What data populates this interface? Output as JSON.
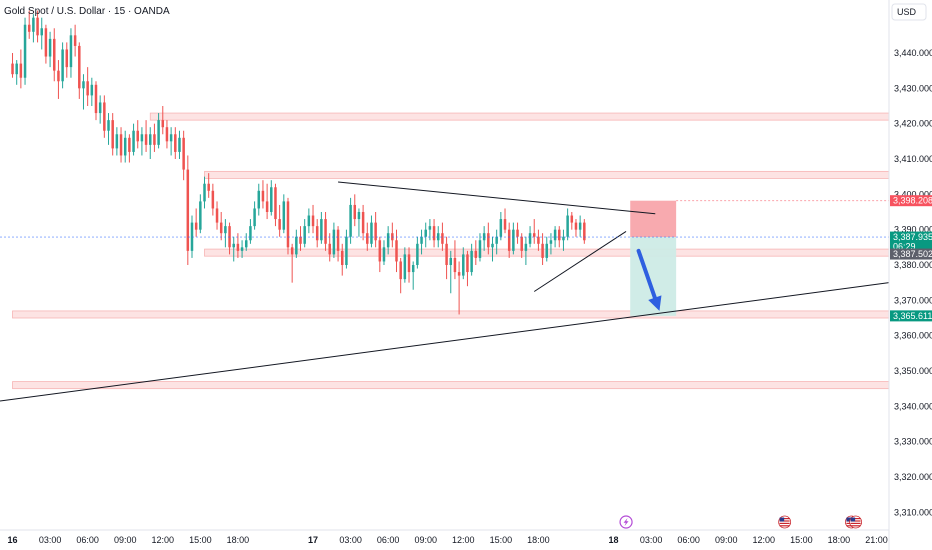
{
  "header": {
    "title": "Gold Spot / U.S. Dollar · 15 · OANDA"
  },
  "axis": {
    "currency_label": "USD"
  },
  "colors": {
    "up": "#26a69a",
    "down": "#ef5350",
    "zone_fill": "#fde3e3",
    "zone_stroke": "#f7b4b4",
    "stop_box": "#f7a1a6",
    "target_box": "#cdebe6",
    "arrow": "#2f5fe0",
    "trendline": "#131722",
    "current_price_tag": "#089981",
    "stop_tag": "#f7525f",
    "target_tag": "#089981",
    "gray_tag": "#5d606b"
  },
  "chart_data": {
    "type": "candlestick",
    "title": "Gold Spot / U.S. Dollar · 15 · OANDA",
    "y_axis": {
      "ticks": [
        "3,440.000",
        "3,430.000",
        "3,420.000",
        "3,410.000",
        "3,400.000",
        "3,390.000",
        "3,380.000",
        "3,370.000",
        "3,360.000",
        "3,350.000",
        "3,340.000",
        "3,330.000",
        "3,320.000",
        "3,310.000"
      ],
      "tick_values": [
        3440,
        3430,
        3420,
        3410,
        3400,
        3390,
        3380,
        3370,
        3360,
        3350,
        3340,
        3330,
        3320,
        3310
      ],
      "range": [
        3305,
        3455
      ]
    },
    "x_axis": {
      "ticks": [
        "16",
        "03:00",
        "06:00",
        "09:00",
        "12:00",
        "15:00",
        "18:00",
        "17",
        "03:00",
        "06:00",
        "09:00",
        "12:00",
        "15:00",
        "18:00",
        "18",
        "03:00",
        "06:00",
        "09:00",
        "12:00",
        "15:00",
        "18:00",
        "21:00"
      ],
      "tick_positions": [
        0,
        9,
        18,
        27,
        36,
        45,
        54,
        72,
        81,
        90,
        99,
        108,
        117,
        126,
        144,
        153,
        162,
        171,
        180,
        189,
        198,
        207
      ],
      "last_candle_index": 149,
      "range_bars": [
        -3,
        210
      ]
    },
    "price_tags": [
      {
        "label": "3,398.208",
        "value": 3398.2,
        "kind": "stop"
      },
      {
        "label": "3,387.935",
        "sublabel": "06:29",
        "value": 3387.9,
        "kind": "current"
      },
      {
        "label": "3,387.502",
        "value": 3383.1,
        "kind": "gray"
      },
      {
        "label": "3,365.611",
        "value": 3365.6,
        "kind": "target"
      }
    ],
    "zones": [
      {
        "from_bar": 33,
        "low": 3421.0,
        "high": 3423.0
      },
      {
        "from_bar": 46,
        "low": 3404.5,
        "high": 3406.5
      },
      {
        "from_bar": 46,
        "low": 3382.5,
        "high": 3384.5
      },
      {
        "from_bar": 0,
        "low": 3365.0,
        "high": 3367.0
      },
      {
        "from_bar": 0,
        "low": 3345.0,
        "high": 3347.0
      }
    ],
    "trendlines": [
      {
        "x1": -3,
        "y1": 3341.5,
        "x2": 210,
        "y2": 3375.0
      },
      {
        "x1": 78,
        "y1": 3403.5,
        "x2": 154,
        "y2": 3394.5
      },
      {
        "x1": 125,
        "y1": 3372.5,
        "x2": 147,
        "y2": 3389.5
      }
    ],
    "position": {
      "from_bar": 148,
      "to_bar": 159,
      "stop_top": 3398.2,
      "entry": 3387.9,
      "target": 3365.6,
      "arrow": {
        "x1": 150,
        "y1": 3384.0,
        "x2": 155,
        "y2": 3367.0
      }
    },
    "events": [
      {
        "bar": 147,
        "kind": "lightning"
      },
      {
        "bar": 185,
        "kind": "us-flag"
      },
      {
        "bar": 201,
        "kind": "us-flag"
      },
      {
        "bar": 202,
        "kind": "us-flag"
      }
    ],
    "candles": [
      [
        3437,
        3440,
        3433,
        3434
      ],
      [
        3434,
        3438,
        3431,
        3437
      ],
      [
        3437,
        3441,
        3430,
        3433
      ],
      [
        3433,
        3450,
        3431,
        3448
      ],
      [
        3448,
        3452,
        3444,
        3446
      ],
      [
        3446,
        3451,
        3443,
        3450
      ],
      [
        3450,
        3452,
        3443,
        3445
      ],
      [
        3445,
        3450,
        3441,
        3447
      ],
      [
        3447,
        3448,
        3437,
        3439
      ],
      [
        3439,
        3446,
        3436,
        3444
      ],
      [
        3444,
        3447,
        3432,
        3435
      ],
      [
        3435,
        3438,
        3427,
        3432
      ],
      [
        3432,
        3443,
        3430,
        3441
      ],
      [
        3441,
        3443,
        3433,
        3436
      ],
      [
        3436,
        3447,
        3433,
        3445
      ],
      [
        3445,
        3448,
        3439,
        3442
      ],
      [
        3442,
        3443,
        3427,
        3430
      ],
      [
        3430,
        3434,
        3424,
        3432
      ],
      [
        3432,
        3436,
        3425,
        3428
      ],
      [
        3428,
        3433,
        3425,
        3431
      ],
      [
        3431,
        3432,
        3421,
        3423
      ],
      [
        3423,
        3428,
        3420,
        3426
      ],
      [
        3426,
        3428,
        3416,
        3418
      ],
      [
        3418,
        3423,
        3414,
        3421
      ],
      [
        3421,
        3423,
        3411,
        3413
      ],
      [
        3413,
        3419,
        3411,
        3417
      ],
      [
        3417,
        3419,
        3409,
        3411
      ],
      [
        3411,
        3418,
        3409,
        3416
      ],
      [
        3416,
        3417,
        3409,
        3412
      ],
      [
        3412,
        3420,
        3411,
        3418
      ],
      [
        3418,
        3421,
        3413,
        3415
      ],
      [
        3415,
        3419,
        3411,
        3417
      ],
      [
        3417,
        3421,
        3412,
        3414
      ],
      [
        3414,
        3419,
        3410,
        3417
      ],
      [
        3417,
        3420,
        3412,
        3414
      ],
      [
        3414,
        3423,
        3413,
        3421
      ],
      [
        3421,
        3425,
        3417,
        3419
      ],
      [
        3419,
        3421,
        3413,
        3415
      ],
      [
        3415,
        3419,
        3411,
        3417
      ],
      [
        3417,
        3419,
        3410,
        3412
      ],
      [
        3412,
        3418,
        3410,
        3416
      ],
      [
        3416,
        3418,
        3404,
        3407
      ],
      [
        3407,
        3411,
        3380,
        3384
      ],
      [
        3384,
        3394,
        3382,
        3392
      ],
      [
        3392,
        3396,
        3388,
        3390
      ],
      [
        3390,
        3400,
        3389,
        3398
      ],
      [
        3398,
        3405,
        3396,
        3403
      ],
      [
        3403,
        3406,
        3399,
        3401
      ],
      [
        3401,
        3403,
        3394,
        3396
      ],
      [
        3396,
        3398,
        3390,
        3392
      ],
      [
        3392,
        3395,
        3387,
        3389
      ],
      [
        3389,
        3393,
        3385,
        3391
      ],
      [
        3391,
        3392,
        3383,
        3385
      ],
      [
        3385,
        3388,
        3381,
        3386
      ],
      [
        3386,
        3389,
        3382,
        3384
      ],
      [
        3384,
        3387,
        3382,
        3385
      ],
      [
        3385,
        3389,
        3384,
        3387
      ],
      [
        3387,
        3393,
        3386,
        3391
      ],
      [
        3391,
        3398,
        3390,
        3396
      ],
      [
        3396,
        3403,
        3394,
        3401
      ],
      [
        3401,
        3404,
        3396,
        3398
      ],
      [
        3398,
        3403,
        3393,
        3395
      ],
      [
        3395,
        3404,
        3394,
        3402
      ],
      [
        3402,
        3403,
        3391,
        3393
      ],
      [
        3393,
        3397,
        3388,
        3390
      ],
      [
        3390,
        3400,
        3389,
        3398
      ],
      [
        3398,
        3399,
        3383,
        3385
      ],
      [
        3385,
        3386,
        3375,
        3383
      ],
      [
        3383,
        3390,
        3382,
        3388
      ],
      [
        3388,
        3391,
        3384,
        3386
      ],
      [
        3386,
        3393,
        3385,
        3391
      ],
      [
        3391,
        3396,
        3389,
        3394
      ],
      [
        3394,
        3397,
        3389,
        3391
      ],
      [
        3391,
        3393,
        3385,
        3387
      ],
      [
        3387,
        3395,
        3386,
        3393
      ],
      [
        3393,
        3395,
        3384,
        3386
      ],
      [
        3386,
        3389,
        3381,
        3383
      ],
      [
        3383,
        3392,
        3382,
        3390
      ],
      [
        3390,
        3391,
        3381,
        3384
      ],
      [
        3384,
        3386,
        3377,
        3380
      ],
      [
        3380,
        3390,
        3379,
        3388
      ],
      [
        3388,
        3399,
        3386,
        3397
      ],
      [
        3397,
        3400,
        3391,
        3393
      ],
      [
        3393,
        3396,
        3388,
        3395
      ],
      [
        3395,
        3397,
        3387,
        3389
      ],
      [
        3389,
        3392,
        3384,
        3386
      ],
      [
        3386,
        3394,
        3385,
        3392
      ],
      [
        3392,
        3395,
        3385,
        3387
      ],
      [
        3387,
        3388,
        3378,
        3381
      ],
      [
        3381,
        3387,
        3380,
        3385
      ],
      [
        3385,
        3391,
        3383,
        3389
      ],
      [
        3389,
        3392,
        3385,
        3387
      ],
      [
        3387,
        3390,
        3378,
        3381
      ],
      [
        3381,
        3382,
        3372,
        3376
      ],
      [
        3376,
        3385,
        3375,
        3383
      ],
      [
        3383,
        3385,
        3375,
        3378
      ],
      [
        3378,
        3381,
        3373,
        3380
      ],
      [
        3380,
        3388,
        3379,
        3386
      ],
      [
        3386,
        3390,
        3383,
        3388
      ],
      [
        3388,
        3392,
        3385,
        3390
      ],
      [
        3390,
        3393,
        3387,
        3391
      ],
      [
        3391,
        3393,
        3385,
        3387
      ],
      [
        3387,
        3391,
        3385,
        3389
      ],
      [
        3389,
        3392,
        3384,
        3386
      ],
      [
        3386,
        3388,
        3376,
        3380
      ],
      [
        3380,
        3384,
        3372,
        3382
      ],
      [
        3382,
        3387,
        3376,
        3378
      ],
      [
        3378,
        3381,
        3366,
        3377
      ],
      [
        3377,
        3385,
        3376,
        3383
      ],
      [
        3383,
        3384,
        3374,
        3378
      ],
      [
        3378,
        3386,
        3377,
        3384
      ],
      [
        3384,
        3387,
        3380,
        3382
      ],
      [
        3382,
        3389,
        3381,
        3387
      ],
      [
        3387,
        3391,
        3384,
        3389
      ],
      [
        3389,
        3392,
        3383,
        3385
      ],
      [
        3385,
        3388,
        3381,
        3386
      ],
      [
        3386,
        3390,
        3383,
        3388
      ],
      [
        3388,
        3395,
        3387,
        3393
      ],
      [
        3393,
        3396,
        3389,
        3390
      ],
      [
        3390,
        3392,
        3382,
        3384
      ],
      [
        3384,
        3392,
        3383,
        3390
      ],
      [
        3390,
        3392,
        3386,
        3388
      ],
      [
        3388,
        3389,
        3382,
        3384
      ],
      [
        3384,
        3388,
        3380,
        3386
      ],
      [
        3386,
        3391,
        3385,
        3389
      ],
      [
        3389,
        3393,
        3386,
        3388
      ],
      [
        3388,
        3390,
        3384,
        3386
      ],
      [
        3386,
        3389,
        3380,
        3382
      ],
      [
        3382,
        3388,
        3381,
        3386
      ],
      [
        3386,
        3389,
        3383,
        3387
      ],
      [
        3387,
        3391,
        3385,
        3390
      ],
      [
        3390,
        3391,
        3385,
        3387
      ],
      [
        3387,
        3390,
        3384,
        3388
      ],
      [
        3388,
        3396,
        3387,
        3394
      ],
      [
        3394,
        3395,
        3390,
        3392
      ],
      [
        3392,
        3393,
        3388,
        3390
      ],
      [
        3390,
        3394,
        3388,
        3392
      ],
      [
        3392,
        3393,
        3386,
        3387
      ]
    ]
  }
}
